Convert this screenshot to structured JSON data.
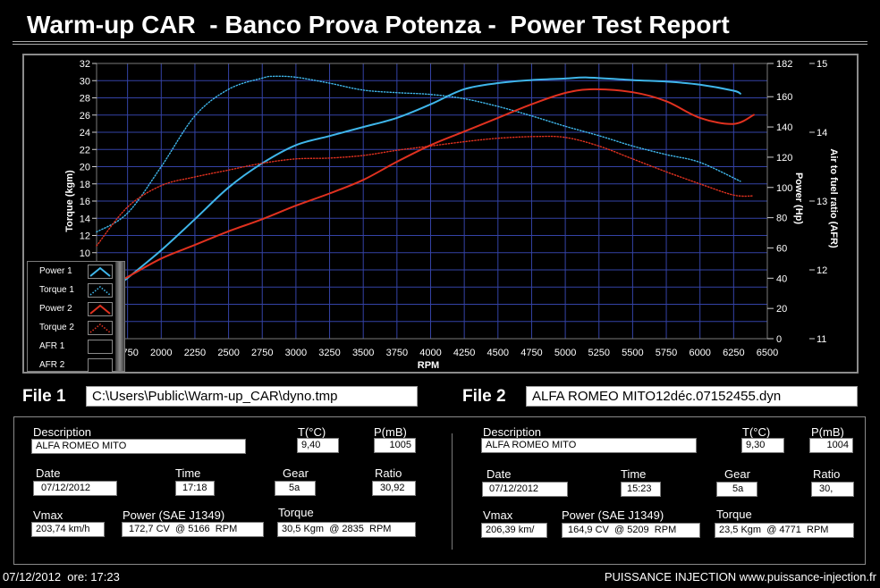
{
  "title": "Warm-up CAR  - Banco Prova Potenza -  Power Test Report",
  "chart_data": {
    "type": "line",
    "xlabel": "RPM",
    "ylabel": "Torque (kgm)",
    "y2label": "Power (Hp)",
    "y3label": "Air to fuel ratio (AFR)",
    "xlim": [
      1520,
      6500
    ],
    "xticks": [
      1750,
      2000,
      2250,
      2500,
      2750,
      3000,
      3250,
      3500,
      3750,
      4000,
      4250,
      4500,
      4750,
      5000,
      5250,
      5500,
      5750,
      6000,
      6250,
      6500
    ],
    "ylim": [
      0,
      32
    ],
    "yticks": [
      0,
      2,
      4,
      6,
      8,
      10,
      12,
      14,
      16,
      18,
      20,
      22,
      24,
      26,
      28,
      30,
      32
    ],
    "y2lim": [
      0,
      182
    ],
    "y2ticks": [
      0,
      20,
      40,
      60,
      80,
      100,
      120,
      140,
      160,
      182
    ],
    "y3lim": [
      11,
      15
    ],
    "y3ticks": [
      11,
      12,
      13,
      14,
      15
    ],
    "grid": true,
    "legend": "bottom-left",
    "series": [
      {
        "name": "Power 1",
        "axis": "y2",
        "style": "solid",
        "color": "#3fb6ea",
        "x": [
          1735,
          2000,
          2250,
          2500,
          2750,
          3000,
          3250,
          3500,
          3750,
          4000,
          4250,
          4500,
          4750,
          5000,
          5166,
          5500,
          5750,
          6000,
          6250,
          6300
        ],
        "y": [
          39,
          58.5,
          79,
          100,
          116,
          128,
          134,
          140,
          146,
          155,
          165,
          169,
          171,
          172,
          172.7,
          171,
          170,
          168,
          164,
          162
        ]
      },
      {
        "name": "Torque 1",
        "axis": "y",
        "style": "dotted",
        "color": "#3fb6ea",
        "x": [
          1520,
          1750,
          2000,
          2250,
          2500,
          2750,
          2835,
          3000,
          3250,
          3500,
          3750,
          4000,
          4250,
          4500,
          4750,
          5000,
          5250,
          5500,
          5750,
          6000,
          6300
        ],
        "y": [
          12.4,
          14.6,
          20,
          25.9,
          29,
          30.3,
          30.5,
          30.4,
          29.7,
          28.9,
          28.6,
          28.4,
          27.9,
          27,
          25.9,
          24.7,
          23.6,
          22.4,
          21.4,
          20.5,
          18.3
        ]
      },
      {
        "name": "Power 2",
        "axis": "y2",
        "style": "solid",
        "color": "#e0311f",
        "x": [
          1735,
          2000,
          2250,
          2500,
          2750,
          3000,
          3250,
          3500,
          3750,
          4000,
          4250,
          4500,
          4750,
          5000,
          5209,
          5500,
          5750,
          6000,
          6250,
          6400
        ],
        "y": [
          40,
          53,
          62,
          71,
          79,
          88,
          96,
          105,
          117,
          128,
          137,
          146,
          155,
          162.5,
          164.9,
          163,
          157,
          146,
          142,
          148
        ]
      },
      {
        "name": "Torque 2",
        "axis": "y",
        "style": "dotted",
        "color": "#e0311f",
        "x": [
          1520,
          1750,
          2000,
          2250,
          2500,
          2750,
          3000,
          3250,
          3500,
          3750,
          4000,
          4250,
          4500,
          4771,
          5000,
          5250,
          5500,
          5750,
          6000,
          6250,
          6400
        ],
        "y": [
          10.8,
          15.3,
          17.8,
          18.8,
          19.6,
          20.4,
          20.9,
          21,
          21.3,
          21.9,
          22.4,
          22.9,
          23.3,
          23.5,
          23.4,
          22.4,
          20.9,
          19.4,
          18,
          16.7,
          16.6
        ]
      },
      {
        "name": "AFR 1",
        "axis": "y3",
        "style": "solid",
        "x": [],
        "y": []
      },
      {
        "name": "AFR 2",
        "axis": "y3",
        "style": "solid",
        "x": [],
        "y": []
      }
    ]
  },
  "file1": {
    "label": "File 1",
    "path": "C:\\Users\\Public\\Warm-up_CAR\\dyno.tmp"
  },
  "file2": {
    "label": "File 2",
    "path": "ALFA ROMEO MITO12déc.07152455.dyn"
  },
  "labels": {
    "description": "Description",
    "temp": "T(°C)",
    "pressure": "P(mB)",
    "date": "Date",
    "time": "Time",
    "gear": "Gear",
    "ratio": "Ratio",
    "vmax": "Vmax",
    "power": "Power (SAE J1349)",
    "torque": "Torque"
  },
  "run1": {
    "description": "ALFA ROMEO MITO",
    "temp": "9,40",
    "pressure": "1005",
    "date": "07/12/2012",
    "time": "17:18",
    "gear": "5a",
    "ratio": "30,92",
    "vmax": "203,74 km/h",
    "power": "172,7 CV  @ 5166  RPM",
    "torque": "30,5 Kgm  @ 2835  RPM"
  },
  "run2": {
    "description": "ALFA ROMEO MITO",
    "temp": "9,30",
    "pressure": "1004",
    "date": "07/12/2012",
    "time": "15:23",
    "gear": "5a",
    "ratio": "30,",
    "vmax": "206,39 km/",
    "power": "164,9 CV  @ 5209  RPM",
    "torque": "23,5 Kgm  @ 4771  RPM"
  },
  "footer": {
    "left": "07/12/2012  ore: 17:23",
    "right": "PUISSANCE INJECTION www.puissance-injection.fr"
  }
}
